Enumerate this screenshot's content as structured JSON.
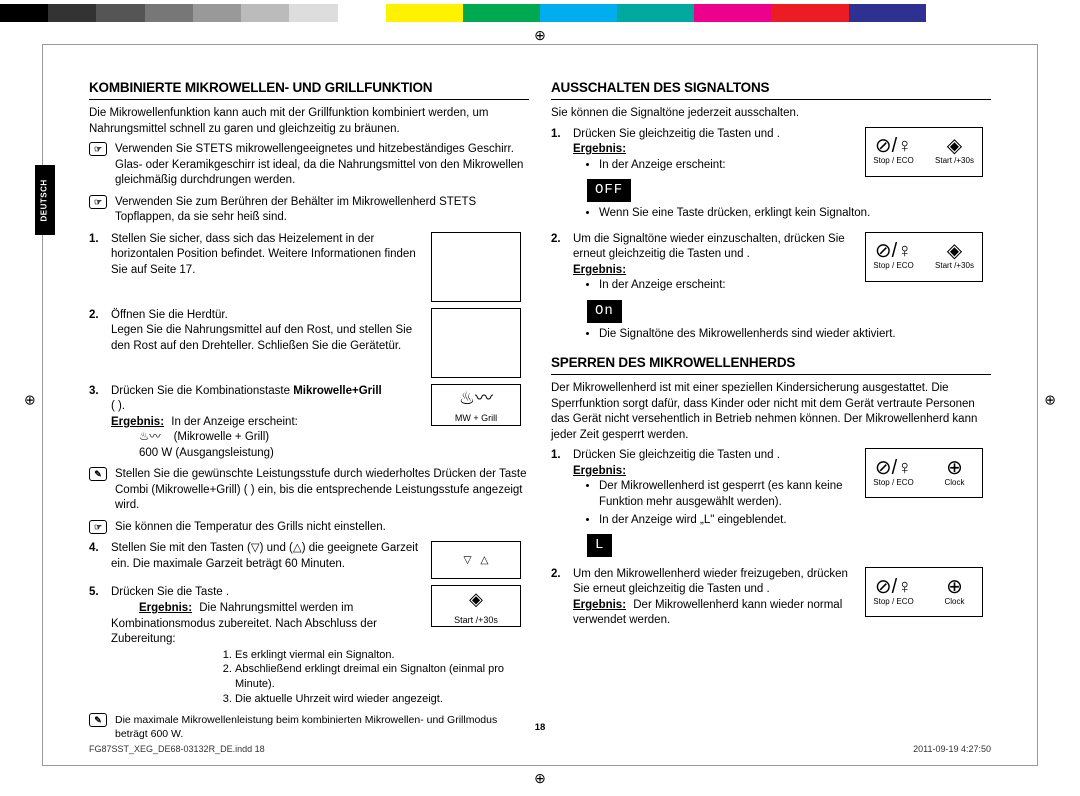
{
  "colorbar": [
    "#000000",
    "#333333",
    "#555555",
    "#777777",
    "#999999",
    "#bbbbbb",
    "#dddddd",
    "#ffffff",
    "#fff200",
    "#00a94f",
    "#00aeef",
    "#00a99d",
    "#ec008c",
    "#ed1c24",
    "#2e3192",
    "#ffffff",
    "#ffffff"
  ],
  "sideTab": "DEUTSCH",
  "pageNum": "18",
  "footer": {
    "left": "FG87SST_XEG_DE68-03132R_DE.indd   18",
    "right": "2011-09-19   4:27:50"
  },
  "left": {
    "h": "KOMBINIERTE MIKROWELLEN- UND GRILLFUNKTION",
    "intro": "Die Mikrowellenfunktion kann auch mit der Grillfunktion kombiniert werden, um Nahrungsmittel schnell zu garen und gleichzeitig zu bräunen.",
    "note1": "Verwenden Sie STETS mikrowellengeeignetes und hitzebeständiges Geschirr. Glas- oder Keramikgeschirr ist ideal, da die Nahrungsmittel von den Mikrowellen gleichmäßig durchdrungen werden.",
    "note2": "Verwenden Sie zum Berühren der Behälter im Mikrowellenherd STETS Topflappen, da sie sehr heiß sind.",
    "s1": "Stellen Sie sicher, dass sich das Heizelement in der horizontalen Position befindet. Weitere Informationen finden Sie auf Seite 17.",
    "s2a": "Öffnen Sie die Herdtür.",
    "s2b": "Legen Sie die Nahrungsmittel auf den Rost, und stellen Sie den Rost auf den Drehteller. Schließen Sie die Gerätetür.",
    "s3a": "Drücken Sie die Kombinationstaste ",
    "s3bold": "Mikrowelle+Grill",
    "s3b": "(        ).",
    "erg3a": "In der Anzeige erscheint:",
    "erg3b": "(Mikrowelle + Grill)",
    "erg3c": "600 W        (Ausgangsleistung)",
    "fig_mwgrill": "MW + Grill",
    "note3": "Stellen Sie die gewünschte Leistungsstufe durch wiederholtes Drücken der Taste Combi (Mikrowelle+Grill) (        ) ein, bis die entsprechende Leistungsstufe angezeigt wird.",
    "note4": "Sie können die Temperatur des Grills nicht einstellen.",
    "s4": "Stellen Sie mit den Tasten (▽) und (△) die geeignete Garzeit ein. Die maximale Garzeit beträgt 60 Minuten.",
    "s5": "Drücken Sie die Taste    .",
    "erg5": "Die Nahrungsmittel werden im Kombinationsmodus zubereitet. Nach Abschluss der Zubereitung:",
    "erg5_1": "Es erklingt viermal ein Signalton.",
    "erg5_2": "Abschließend erklingt dreimal ein Signalton (einmal pro Minute).",
    "erg5_3": "Die aktuelle Uhrzeit wird wieder angezeigt.",
    "fig_start": "Start /+30s",
    "note5": "Die maximale Mikrowellenleistung beim kombinierten Mikrowellen- und Grillmodus beträgt 600 W."
  },
  "right": {
    "h1": "AUSSCHALTEN DES SIGNALTONS",
    "a_intro": "Sie können die Signaltöne jederzeit ausschalten.",
    "a1": "Drücken Sie gleichzeitig die Tasten     und    .",
    "a1_r1": "In der Anzeige erscheint:",
    "disp_off": "OFF",
    "a1_r2": "Wenn Sie eine Taste drücken, erklingt kein Signalton.",
    "a2": "Um die Signaltöne wieder einzuschalten, drücken Sie erneut gleichzeitig die Tasten     und    .",
    "a2_r1": "In der Anzeige erscheint:",
    "disp_on": "On",
    "a2_r2": "Die Signaltöne des Mikrowellenherds sind wieder aktiviert.",
    "lab_stop": "Stop / ECO",
    "lab_start": "Start /+30s",
    "lab_clock": "Clock",
    "h2": "SPERREN DES MIKROWELLENHERDS",
    "b_intro": "Der Mikrowellenherd ist mit einer speziellen Kindersicherung ausgestattet. Die Sperrfunktion sorgt dafür, dass Kinder oder nicht mit dem Gerät vertraute Personen das Gerät nicht versehentlich in Betrieb nehmen können. Der Mikrowellenherd kann jeder Zeit gesperrt werden.",
    "b1": "Drücken Sie gleichzeitig die Tasten     und    .",
    "b1_r1": "Der Mikrowellenherd ist gesperrt (es kann keine Funktion mehr ausgewählt werden).",
    "b1_r2": "In der Anzeige wird „L\" eingeblendet.",
    "disp_L": "L",
    "b2": "Um den Mikrowellenherd wieder freizugeben, drücken Sie erneut gleichzeitig die Tasten     und    .",
    "b2_erg": "Der Mikrowellenherd kann wieder normal verwendet werden.",
    "erg_label": "Ergebnis:"
  }
}
